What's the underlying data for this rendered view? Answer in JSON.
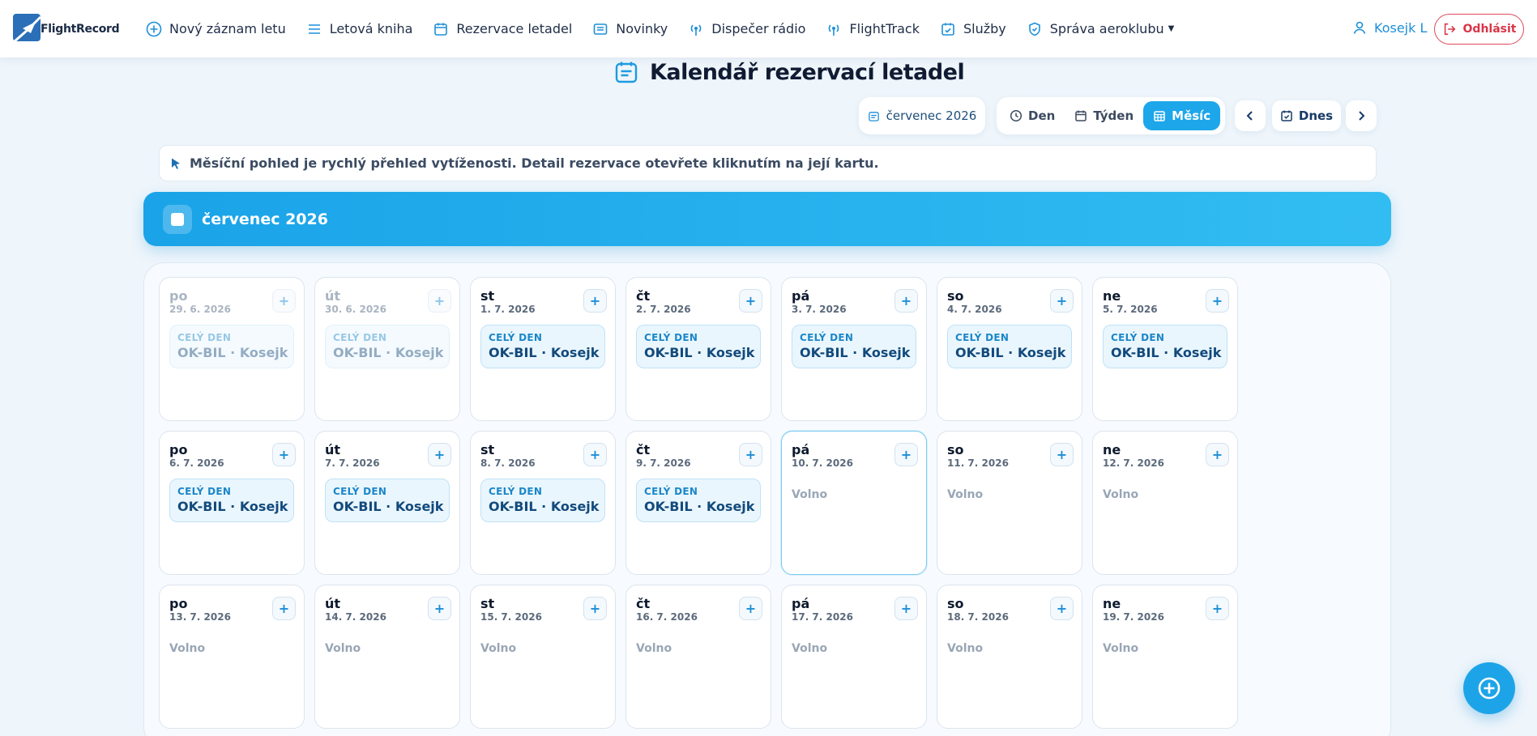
{
  "app": {
    "brand": "FlightRecord"
  },
  "nav": {
    "items": [
      {
        "label": "Nový záznam letu",
        "icon": "plus-circle-icon"
      },
      {
        "label": "Letová kniha",
        "icon": "list-icon"
      },
      {
        "label": "Rezervace letadel",
        "icon": "calendar-icon"
      },
      {
        "label": "Novinky",
        "icon": "newspaper-icon"
      },
      {
        "label": "Dispečer rádio",
        "icon": "radio-icon"
      },
      {
        "label": "FlightTrack",
        "icon": "broadcast-icon"
      },
      {
        "label": "Služby",
        "icon": "calendar-check-icon"
      },
      {
        "label": "Správa aeroklubu",
        "icon": "shield-icon"
      }
    ],
    "user": "Kosejk L",
    "logout": "Odhlásit"
  },
  "header": {
    "title": "Kalendář rezervací letadel",
    "current_month": "červenec 2026",
    "views": [
      "Den",
      "Týden",
      "Měsíc"
    ],
    "active_view": "Měsíc",
    "today": "Dnes"
  },
  "hint": "Měsíční pohled je rychlý přehled vytíženosti. Detail rezervace otevřete kliknutím na její kartu.",
  "banner": {
    "month": "červenec 2026"
  },
  "calendar": {
    "free_label": "Volno",
    "weeks": [
      [
        {
          "day": "po",
          "date": "29. 6. 2026",
          "muted": true,
          "res": {
            "label": "CELÝ DEN",
            "text": "OK-BIL · Kosejk L"
          }
        },
        {
          "day": "út",
          "date": "30. 6. 2026",
          "muted": true,
          "res": {
            "label": "CELÝ DEN",
            "text": "OK-BIL · Kosejk L"
          }
        },
        {
          "day": "st",
          "date": "1. 7. 2026",
          "res": {
            "label": "CELÝ DEN",
            "text": "OK-BIL · Kosejk L"
          }
        },
        {
          "day": "čt",
          "date": "2. 7. 2026",
          "res": {
            "label": "CELÝ DEN",
            "text": "OK-BIL · Kosejk L"
          }
        },
        {
          "day": "pá",
          "date": "3. 7. 2026",
          "res": {
            "label": "CELÝ DEN",
            "text": "OK-BIL · Kosejk L"
          }
        },
        {
          "day": "so",
          "date": "4. 7. 2026",
          "res": {
            "label": "CELÝ DEN",
            "text": "OK-BIL · Kosejk L"
          }
        },
        {
          "day": "ne",
          "date": "5. 7. 2026",
          "res": {
            "label": "CELÝ DEN",
            "text": "OK-BIL · Kosejk L"
          }
        }
      ],
      [
        {
          "day": "po",
          "date": "6. 7. 2026",
          "res": {
            "label": "CELÝ DEN",
            "text": "OK-BIL · Kosejk L"
          }
        },
        {
          "day": "út",
          "date": "7. 7. 2026",
          "res": {
            "label": "CELÝ DEN",
            "text": "OK-BIL · Kosejk L"
          }
        },
        {
          "day": "st",
          "date": "8. 7. 2026",
          "res": {
            "label": "CELÝ DEN",
            "text": "OK-BIL · Kosejk L"
          }
        },
        {
          "day": "čt",
          "date": "9. 7. 2026",
          "res": {
            "label": "CELÝ DEN",
            "text": "OK-BIL · Kosejk L"
          }
        },
        {
          "day": "pá",
          "date": "10. 7. 2026",
          "today": true
        },
        {
          "day": "so",
          "date": "11. 7. 2026"
        },
        {
          "day": "ne",
          "date": "12. 7. 2026"
        }
      ],
      [
        {
          "day": "po",
          "date": "13. 7. 2026"
        },
        {
          "day": "út",
          "date": "14. 7. 2026"
        },
        {
          "day": "st",
          "date": "15. 7. 2026"
        },
        {
          "day": "čt",
          "date": "16. 7. 2026"
        },
        {
          "day": "pá",
          "date": "17. 7. 2026"
        },
        {
          "day": "so",
          "date": "18. 7. 2026"
        },
        {
          "day": "ne",
          "date": "19. 7. 2026"
        }
      ]
    ]
  },
  "colors": {
    "accent": "#1ea6ea",
    "danger": "#d93547",
    "background": "#eef5fb"
  }
}
